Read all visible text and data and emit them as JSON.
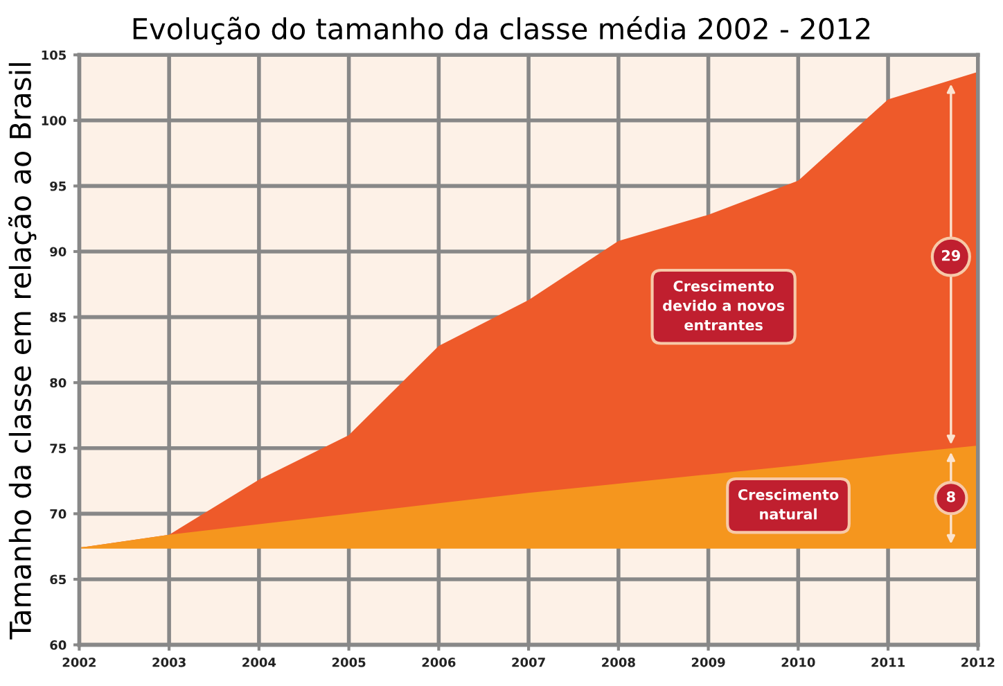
{
  "chart_data": {
    "type": "area",
    "title": "Evolução do tamanho da classe média 2002 - 2012",
    "ylabel": "Tamanho da classe em relação ao Brasil",
    "x": [
      2002,
      2003,
      2004,
      2005,
      2006,
      2007,
      2008,
      2009,
      2010,
      2011,
      2012
    ],
    "series": [
      {
        "color": "#ee5a2a",
        "values": [
          67.4,
          68.4,
          72.6,
          76.0,
          82.8,
          86.3,
          90.8,
          92.8,
          95.4,
          101.6,
          103.7
        ]
      },
      {
        "color": "#f5961e",
        "values": [
          67.4,
          68.4,
          69.2,
          70.0,
          70.8,
          71.6,
          72.3,
          73.0,
          73.7,
          74.5,
          75.2
        ]
      }
    ],
    "ref_lines": [
      {
        "axis": "y",
        "value": 67.4,
        "color": "#f5961e"
      }
    ],
    "annotations": [
      "Crescimento\ndevido a novos\nentrantes",
      "Crescimento\nnatural",
      {
        "text": "29",
        "x": 2011.7,
        "y": 89.6
      },
      {
        "text": "8",
        "x": 2011.7,
        "y": 71.2
      }
    ],
    "xlim": [
      2002,
      2012
    ],
    "xticks": [
      2002,
      2003,
      2004,
      2005,
      2006,
      2007,
      2008,
      2009,
      2010,
      2011,
      2012
    ],
    "ylim": [
      60,
      105
    ],
    "yticks": [
      60,
      65,
      70,
      75,
      80,
      85,
      90,
      95,
      100,
      105
    ],
    "grid": true
  }
}
